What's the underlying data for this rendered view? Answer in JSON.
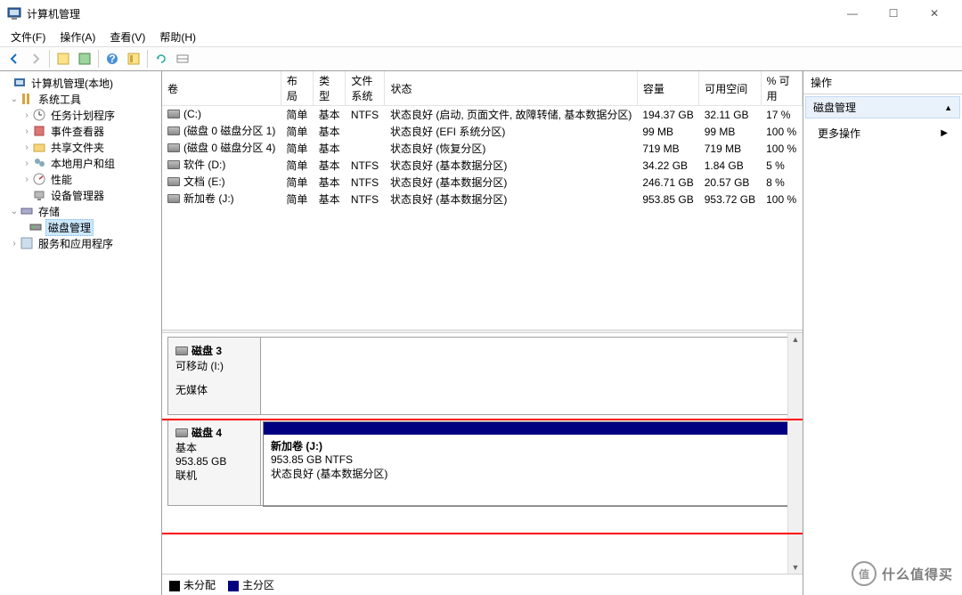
{
  "window": {
    "title": "计算机管理",
    "minimize": "—",
    "maximize": "☐",
    "close": "✕"
  },
  "menu": {
    "file": "文件(F)",
    "action": "操作(A)",
    "view": "查看(V)",
    "help": "帮助(H)"
  },
  "tree": {
    "root": "计算机管理(本地)",
    "system_tools": "系统工具",
    "task_scheduler": "任务计划程序",
    "event_viewer": "事件查看器",
    "shared_folders": "共享文件夹",
    "local_users": "本地用户和组",
    "performance": "性能",
    "device_manager": "设备管理器",
    "storage": "存储",
    "disk_mgmt": "磁盘管理",
    "services_apps": "服务和应用程序"
  },
  "columns": {
    "volume": "卷",
    "layout": "布局",
    "type": "类型",
    "fs": "文件系统",
    "status": "状态",
    "capacity": "容量",
    "free": "可用空间",
    "pct_free": "% 可用"
  },
  "volumes": [
    {
      "name": "(C:)",
      "layout": "简单",
      "type": "基本",
      "fs": "NTFS",
      "status": "状态良好 (启动, 页面文件, 故障转储, 基本数据分区)",
      "capacity": "194.37 GB",
      "free": "32.11 GB",
      "pct": "17 %"
    },
    {
      "name": "(磁盘 0 磁盘分区 1)",
      "layout": "简单",
      "type": "基本",
      "fs": "",
      "status": "状态良好 (EFI 系统分区)",
      "capacity": "99 MB",
      "free": "99 MB",
      "pct": "100 %"
    },
    {
      "name": "(磁盘 0 磁盘分区 4)",
      "layout": "简单",
      "type": "基本",
      "fs": "",
      "status": "状态良好 (恢复分区)",
      "capacity": "719 MB",
      "free": "719 MB",
      "pct": "100 %"
    },
    {
      "name": "软件 (D:)",
      "layout": "简单",
      "type": "基本",
      "fs": "NTFS",
      "status": "状态良好 (基本数据分区)",
      "capacity": "34.22 GB",
      "free": "1.84 GB",
      "pct": "5 %"
    },
    {
      "name": "文档 (E:)",
      "layout": "简单",
      "type": "基本",
      "fs": "NTFS",
      "status": "状态良好 (基本数据分区)",
      "capacity": "246.71 GB",
      "free": "20.57 GB",
      "pct": "8 %"
    },
    {
      "name": "新加卷 (J:)",
      "layout": "简单",
      "type": "基本",
      "fs": "NTFS",
      "status": "状态良好 (基本数据分区)",
      "capacity": "953.85 GB",
      "free": "953.72 GB",
      "pct": "100 %"
    }
  ],
  "disk3": {
    "name": "磁盘 3",
    "type": "可移动 (I:)",
    "status": "无媒体"
  },
  "disk4": {
    "name": "磁盘 4",
    "type": "基本",
    "capacity": "953.85 GB",
    "status": "联机",
    "partition": {
      "name": "新加卷  (J:)",
      "size": "953.85 GB NTFS",
      "status": "状态良好 (基本数据分区)"
    }
  },
  "legend": {
    "unallocated": "未分配",
    "primary": "主分区"
  },
  "actions": {
    "title": "操作",
    "section": "磁盘管理",
    "more": "更多操作"
  },
  "watermark": {
    "badge": "值",
    "text": "什么值得买"
  },
  "colors": {
    "partition_header": "#000080",
    "unallocated": "#000000",
    "primary": "#000080",
    "highlight": "#ff0000",
    "action_section_bg": "#e9f1fb"
  }
}
